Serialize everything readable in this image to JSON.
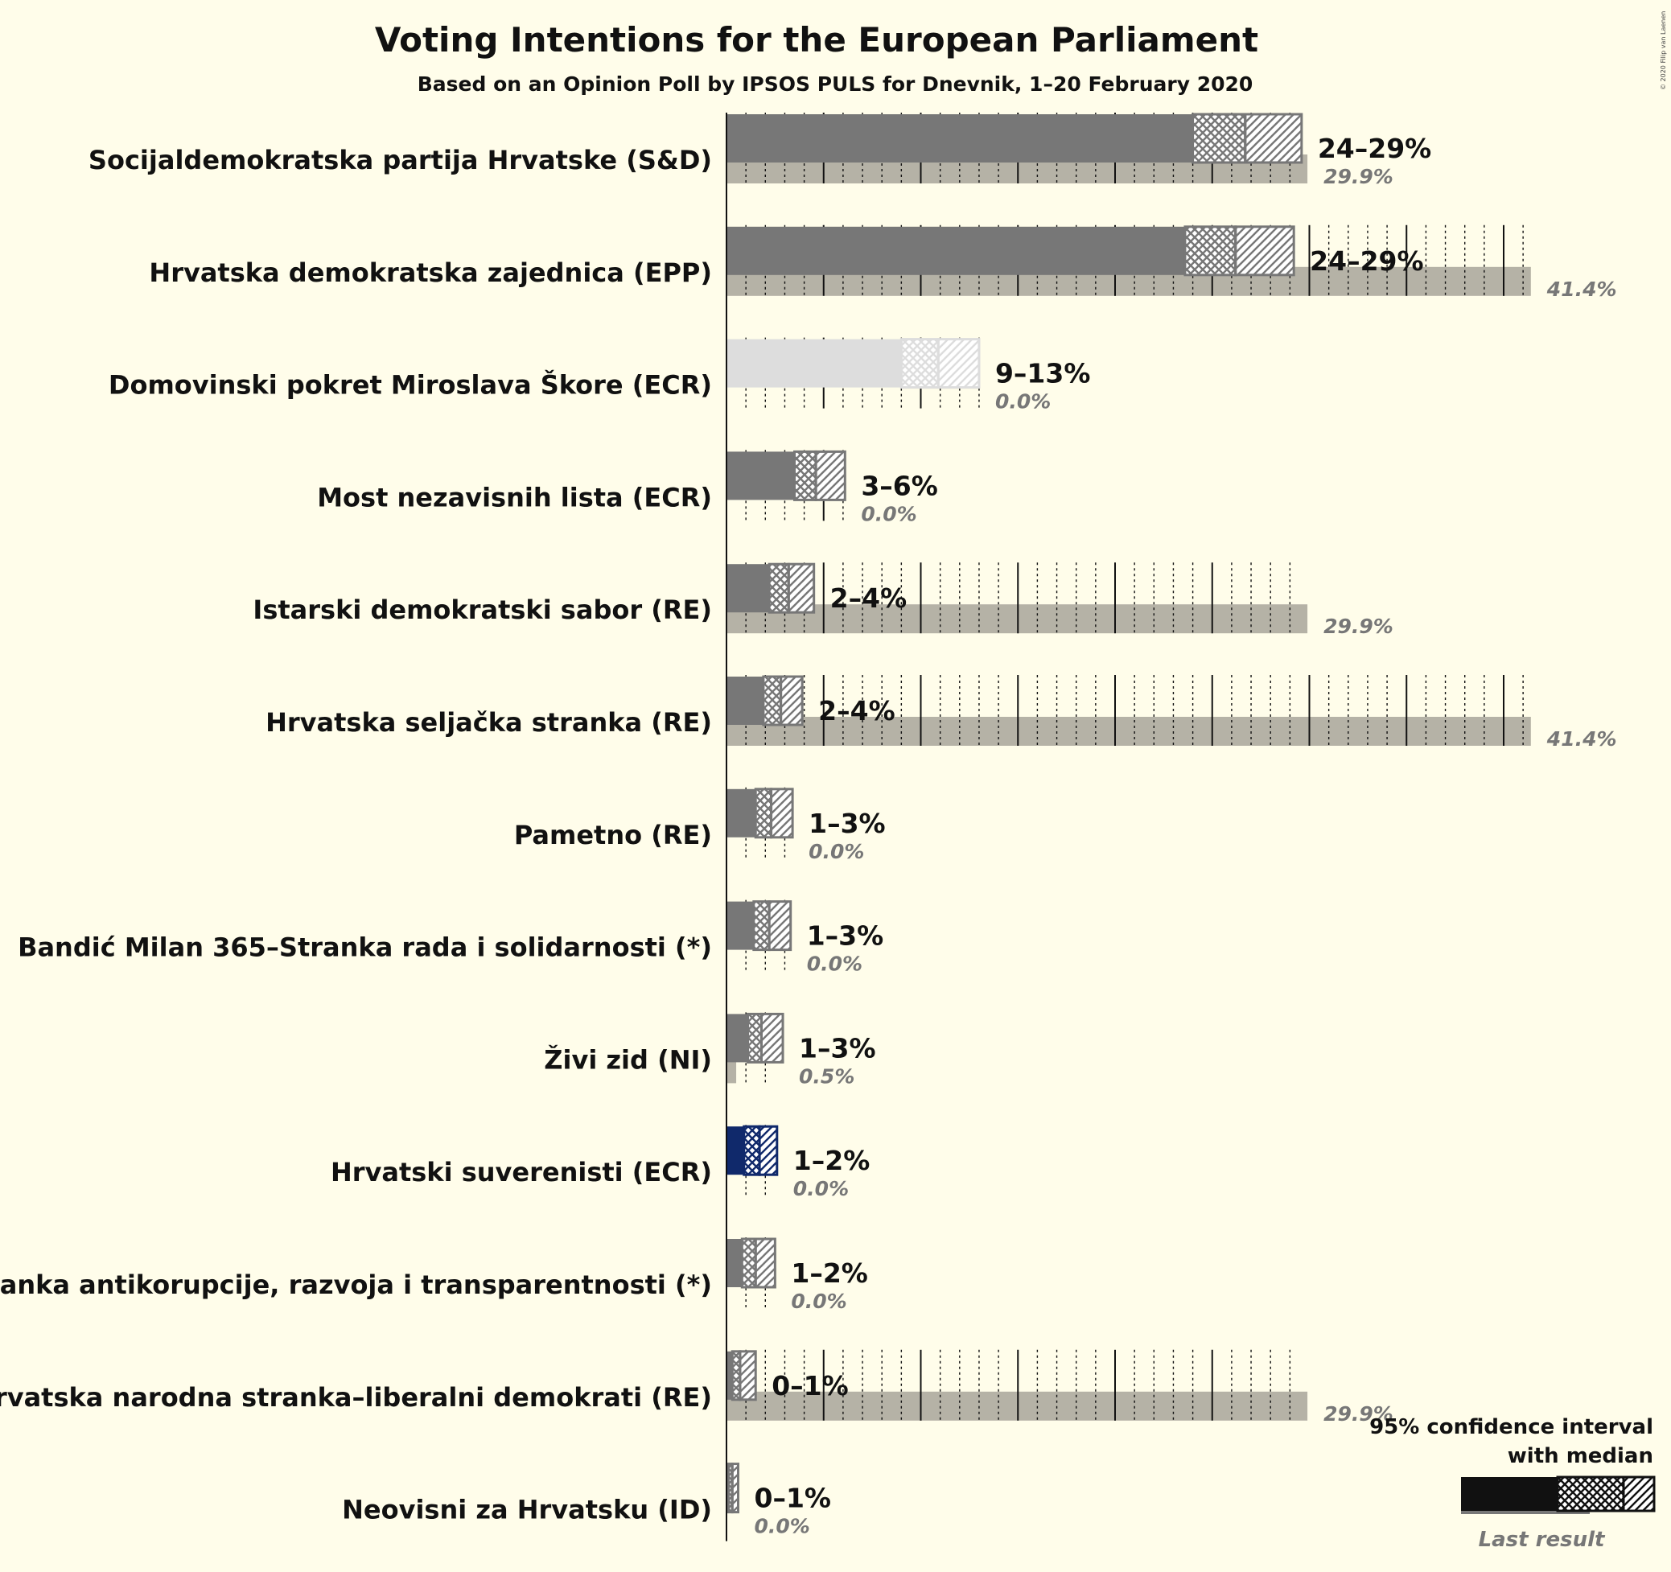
{
  "title": "Voting Intentions for the European Parliament",
  "subtitle": "Based on an Opinion Poll by IPSOS PULS for Dnevnik, 1–20 February 2020",
  "credit": "© 2020 Filip van Laenen",
  "legend": {
    "line1": "95% confidence interval",
    "line2": "with median",
    "last_result": "Last result"
  },
  "colors": {
    "background": "#fffdea",
    "bar_default": "#777777",
    "bar_light": "#dddddd",
    "bar_hrvatski_suverenisti": "#10296b",
    "last_result": "#b5b2a6",
    "legend_bar": "#111111"
  },
  "chart_data": {
    "type": "bar",
    "orientation": "horizontal",
    "unit": "%",
    "categories": [
      "Socijaldemokratska partija Hrvatske (S&D)",
      "Hrvatska demokratska zajednica (EPP)",
      "Domovinski pokret Miroslava Škore (ECR)",
      "Most nezavisnih lista (ECR)",
      "Istarski demokratski sabor (RE)",
      "Hrvatska seljačka stranka (RE)",
      "Pametno (RE)",
      "Bandić Milan 365–Stranka rada i solidarnosti (*)",
      "Živi zid (NI)",
      "Hrvatski suverenisti (ECR)",
      "Stranka antikorupcije, razvoja i transparentnosti (*)",
      "Hrvatska narodna stranka–liberalni demokrati (RE)",
      "Neovisni za Hrvatsku (ID)"
    ],
    "range_labels": [
      "24–29%",
      "24–29%",
      "9–13%",
      "3–6%",
      "2–4%",
      "2–4%",
      "1–3%",
      "1–3%",
      "1–3%",
      "1–2%",
      "1–2%",
      "0–1%",
      "0–1%"
    ],
    "ci_low": [
      24.0,
      23.6,
      9.0,
      3.5,
      2.2,
      1.9,
      1.5,
      1.4,
      1.1,
      0.9,
      0.8,
      0.3,
      0.1
    ],
    "median": [
      26.7,
      26.2,
      10.9,
      4.6,
      3.2,
      2.8,
      2.3,
      2.2,
      1.8,
      1.7,
      1.5,
      0.7,
      0.3
    ],
    "ci_high": [
      29.6,
      29.2,
      13.0,
      6.1,
      4.5,
      3.9,
      3.4,
      3.3,
      2.9,
      2.6,
      2.5,
      1.5,
      0.6
    ],
    "last_result": [
      29.9,
      41.4,
      0.0,
      0.0,
      29.9,
      41.4,
      0.0,
      0.0,
      0.5,
      0.0,
      0.0,
      29.9,
      0.0
    ],
    "last_result_labels": [
      "29.9%",
      "41.4%",
      "0.0%",
      "0.0%",
      "29.9%",
      "41.4%",
      "0.0%",
      "0.0%",
      "0.5%",
      "0.0%",
      "0.0%",
      "29.9%",
      "0.0%"
    ],
    "bar_color_keys": [
      "bar_default",
      "bar_default",
      "bar_light",
      "bar_default",
      "bar_default",
      "bar_default",
      "bar_default",
      "bar_default",
      "bar_default",
      "bar_hrvatski_suverenisti",
      "bar_default",
      "bar_default",
      "bar_default"
    ],
    "xlim": [
      0,
      45
    ]
  }
}
